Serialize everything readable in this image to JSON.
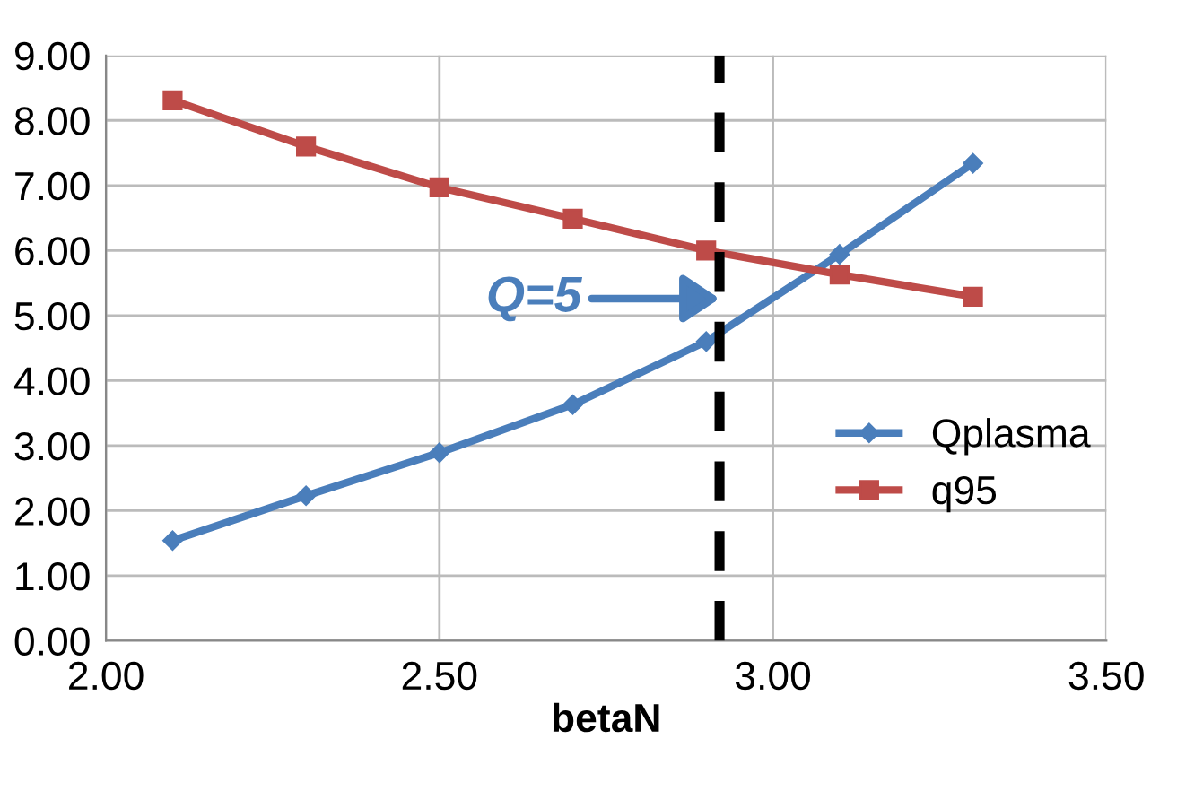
{
  "chart_data": {
    "type": "line",
    "xlabel": "betaN",
    "x": [
      2.1,
      2.3,
      2.5,
      2.7,
      2.9,
      3.1,
      3.3
    ],
    "series": [
      {
        "name": "Qplasma",
        "color": "#4a7ebb",
        "marker": "diamond",
        "values": [
          1.54,
          2.23,
          2.89,
          3.63,
          4.6,
          5.94,
          7.34
        ]
      },
      {
        "name": "q95",
        "color": "#be4b48",
        "marker": "square",
        "values": [
          8.31,
          7.6,
          6.97,
          6.49,
          6.0,
          5.63,
          5.29
        ]
      }
    ],
    "xlim": [
      2.0,
      3.5
    ],
    "xticks": [
      {
        "value": 2.0,
        "label": "2.00"
      },
      {
        "value": 2.5,
        "label": "2.50"
      },
      {
        "value": 3.0,
        "label": "3.00"
      },
      {
        "value": 3.5,
        "label": "3.50"
      }
    ],
    "ylim": [
      0,
      9
    ],
    "yticks": [
      {
        "value": 0,
        "label": "0.00"
      },
      {
        "value": 1,
        "label": "1.00"
      },
      {
        "value": 2,
        "label": "2.00"
      },
      {
        "value": 3,
        "label": "3.00"
      },
      {
        "value": 4,
        "label": "4.00"
      },
      {
        "value": 5,
        "label": "5.00"
      },
      {
        "value": 6,
        "label": "6.00"
      },
      {
        "value": 7,
        "label": "7.00"
      },
      {
        "value": 8,
        "label": "8.00"
      },
      {
        "value": 9,
        "label": "9.00"
      }
    ],
    "ref_lines": [
      {
        "axis": "x",
        "value": 2.92,
        "color": "#000000",
        "line_style": "dashed"
      }
    ],
    "annotations": [
      {
        "text": "Q=5",
        "x": 2.92,
        "y": 5.26
      }
    ],
    "grid": true,
    "legend": "right",
    "line_style": "solid"
  }
}
